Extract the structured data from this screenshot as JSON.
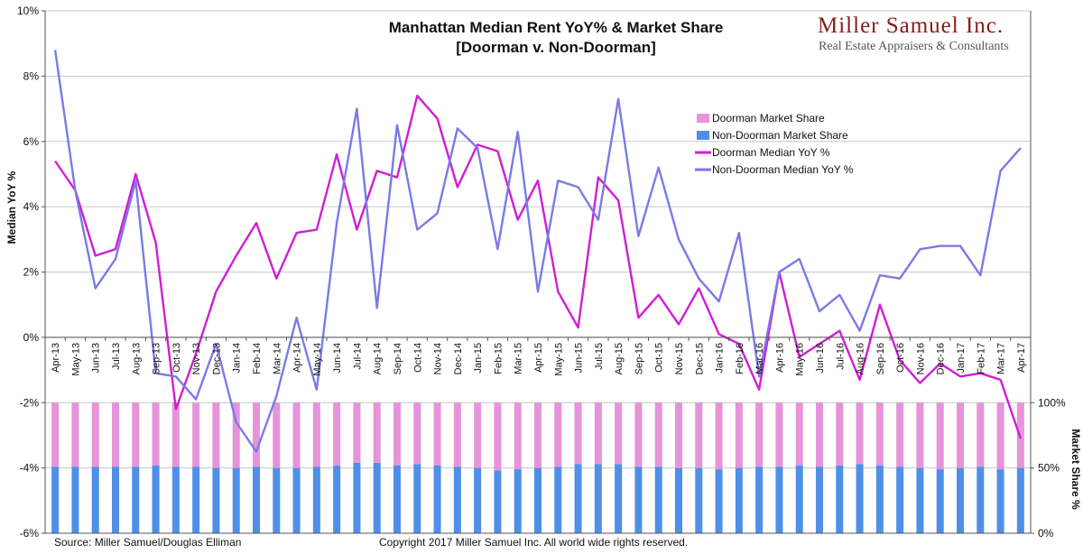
{
  "chart_data": {
    "type": "line",
    "title_line1": "Manhattan Median Rent YoY% & Market Share",
    "title_line2": "[Doorman v. Non-Doorman]",
    "ylabel_left": "Median YoY %",
    "ylabel_right": "Market Share %",
    "ylim_left": [
      -6,
      10
    ],
    "yticks_left": [
      "10%",
      "8%",
      "6%",
      "4%",
      "2%",
      "0%",
      "-2%",
      "-4%",
      "-6%"
    ],
    "yticks_right": [
      "100%",
      "50%",
      "0%"
    ],
    "categories": [
      "Apr-13",
      "May-13",
      "Jun-13",
      "Jul-13",
      "Aug-13",
      "Sep-13",
      "Oct-13",
      "Nov-13",
      "Dec-13",
      "Jan-14",
      "Feb-14",
      "Mar-14",
      "Apr-14",
      "May-14",
      "Jun-14",
      "Jul-14",
      "Aug-14",
      "Sep-14",
      "Oct-14",
      "Nov-14",
      "Dec-14",
      "Jan-15",
      "Feb-15",
      "Mar-15",
      "Apr-15",
      "May-15",
      "Jun-15",
      "Jul-15",
      "Aug-15",
      "Sep-15",
      "Oct-15",
      "Nov-15",
      "Dec-15",
      "Jan-16",
      "Feb-16",
      "Mar-16",
      "Apr-16",
      "May-16",
      "Jun-16",
      "Jul-16",
      "Aug-16",
      "Sep-16",
      "Oct-16",
      "Nov-16",
      "Dec-16",
      "Jan-17",
      "Feb-17",
      "Mar-17",
      "Apr-17"
    ],
    "series": [
      {
        "name": "Doorman Market Share",
        "kind": "stacked-bar",
        "axis": "right",
        "color": "#e694da",
        "values": [
          49,
          49,
          49,
          49,
          49,
          48,
          49,
          49,
          50,
          50,
          49,
          50,
          50,
          49,
          48,
          46,
          46,
          48,
          47,
          48,
          49,
          50,
          52,
          51,
          50,
          49,
          47,
          47,
          47,
          49,
          49,
          50,
          50,
          51,
          50,
          49,
          49,
          48,
          49,
          48,
          47,
          48,
          49,
          50,
          51,
          50,
          49,
          51,
          50
        ]
      },
      {
        "name": "Non-Doorman Market Share",
        "kind": "stacked-bar",
        "axis": "right",
        "color": "#4f8fe8",
        "values": [
          51,
          51,
          51,
          51,
          51,
          52,
          51,
          51,
          50,
          50,
          51,
          50,
          50,
          51,
          52,
          54,
          54,
          52,
          53,
          52,
          51,
          50,
          48,
          49,
          50,
          51,
          53,
          53,
          53,
          51,
          51,
          50,
          50,
          49,
          50,
          51,
          51,
          52,
          51,
          52,
          53,
          52,
          51,
          50,
          49,
          50,
          51,
          49,
          50
        ]
      },
      {
        "name": "Doorman Median YoY %",
        "kind": "line",
        "axis": "left",
        "color": "#d01ed3",
        "values": [
          5.4,
          4.5,
          2.5,
          2.7,
          5.0,
          2.9,
          -2.2,
          -0.5,
          1.4,
          2.5,
          3.5,
          1.8,
          3.2,
          3.3,
          5.6,
          3.3,
          5.1,
          4.9,
          7.4,
          6.7,
          4.6,
          5.9,
          5.7,
          3.6,
          4.8,
          1.4,
          0.3,
          4.9,
          4.2,
          0.6,
          1.3,
          0.4,
          1.5,
          0.1,
          -0.2,
          -1.6,
          2.0,
          -0.6,
          -0.2,
          0.2,
          -1.3,
          1.0,
          -0.7,
          -1.4,
          -0.8,
          -1.2,
          -1.1,
          -1.3,
          -3.1
        ]
      },
      {
        "name": "Non-Doorman Median YoY %",
        "kind": "line",
        "axis": "left",
        "color": "#7b7ae6",
        "values": [
          8.8,
          4.5,
          1.5,
          2.4,
          4.8,
          -1.1,
          -1.2,
          -1.9,
          -0.2,
          -2.6,
          -3.5,
          -1.8,
          0.6,
          -1.6,
          3.5,
          7.0,
          0.9,
          6.5,
          3.3,
          3.8,
          6.4,
          5.8,
          2.7,
          6.3,
          1.4,
          4.8,
          4.6,
          3.6,
          7.3,
          3.1,
          5.2,
          3.0,
          1.8,
          1.1,
          3.2,
          -1.2,
          2.0,
          2.4,
          0.8,
          1.3,
          0.2,
          1.9,
          1.8,
          2.7,
          2.8,
          2.8,
          1.9,
          5.1,
          5.8
        ]
      }
    ],
    "legend_position": "center-right",
    "grid": "horizontal"
  },
  "logo": {
    "name": "Miller Samuel Inc.",
    "tagline": "Real Estate Appraisers & Consultants"
  },
  "footer": {
    "source": "Source: Miller Samuel/Douglas Elliman",
    "copyright": "Copyright 2017 Miller Samuel Inc.  All world wide rights reserved."
  }
}
